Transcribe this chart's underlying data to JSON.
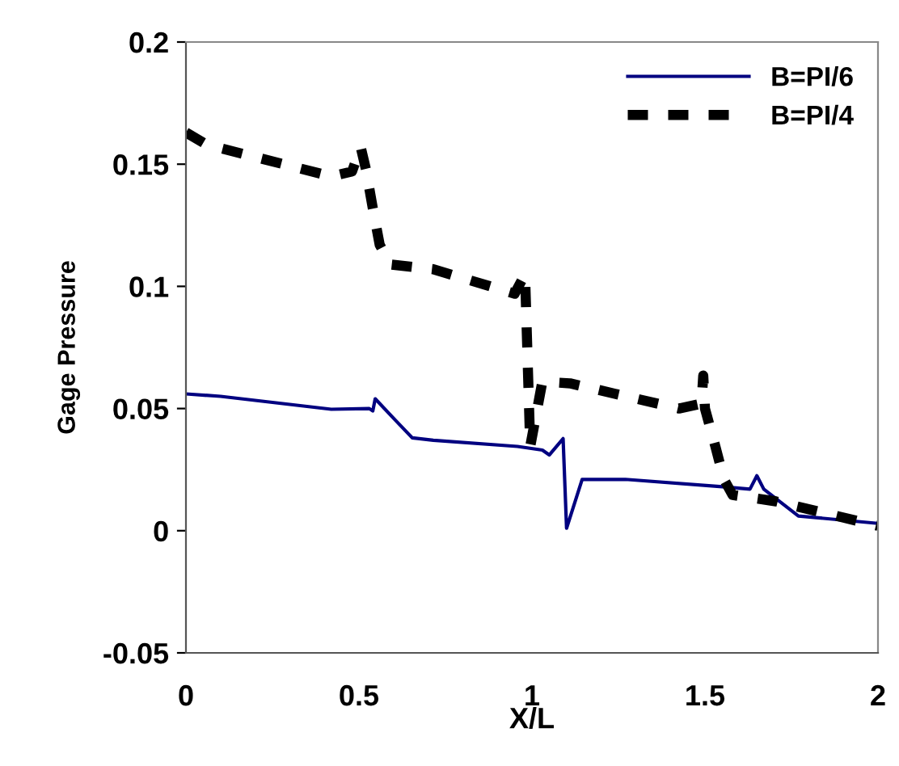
{
  "chart_data": {
    "type": "line",
    "xlabel": "X/L",
    "ylabel": "Gage Pressure",
    "xlim": [
      0,
      2
    ],
    "xticks": [
      0,
      0.5,
      1,
      1.5,
      2
    ],
    "ylim": [
      -0.05,
      0.2
    ],
    "yticks": [
      -0.05,
      0,
      0.05,
      0.1,
      0.15,
      0.2
    ],
    "grid": false,
    "legend": "top right",
    "marker": "none",
    "series": [
      {
        "name": "B=PI/6",
        "color": "#000080",
        "line_style": "solid",
        "x": [
          0,
          0.1,
          0.42,
          0.53,
          0.54,
          0.547,
          0.6,
          0.654,
          0.715,
          0.958,
          1.03,
          1.05,
          1.09,
          1.1,
          1.145,
          1.27,
          1.55,
          1.63,
          1.65,
          1.67,
          1.77,
          2.0
        ],
        "values": [
          0.056,
          0.055,
          0.0497,
          0.05,
          0.049,
          0.054,
          0.046,
          0.038,
          0.037,
          0.0345,
          0.033,
          0.031,
          0.0377,
          0.001,
          0.021,
          0.021,
          0.018,
          0.017,
          0.0225,
          0.017,
          0.006,
          0.003
        ]
      },
      {
        "name": "B=PI/4",
        "color": "#000000",
        "line_style": "dashed",
        "x": [
          0,
          0.06,
          0.42,
          0.48,
          0.505,
          0.52,
          0.54,
          0.56,
          0.59,
          0.715,
          0.95,
          0.98,
          0.995,
          1.03,
          1.11,
          1.425,
          1.49,
          1.495,
          1.5,
          1.53,
          1.555,
          1.58,
          1.705,
          2.0
        ],
        "values": [
          0.163,
          0.158,
          0.145,
          0.147,
          0.157,
          0.148,
          0.132,
          0.117,
          0.109,
          0.107,
          0.097,
          0.105,
          0.0345,
          0.061,
          0.0603,
          0.05,
          0.052,
          0.0635,
          0.05,
          0.0345,
          0.021,
          0.0146,
          0.012,
          0.002
        ]
      }
    ]
  }
}
